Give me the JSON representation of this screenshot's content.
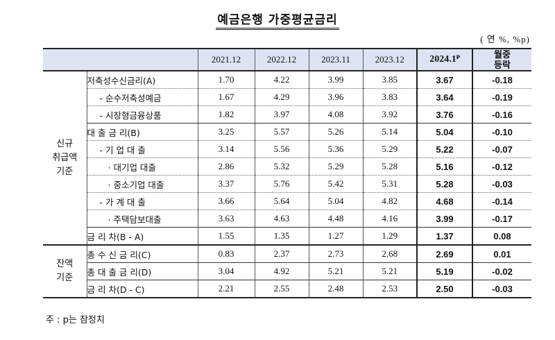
{
  "title": "예금은행 가중평균금리",
  "unit": "( 연 %, %p)",
  "header": {
    "periods": [
      "2021.12",
      "2022.12",
      "2023.11",
      "2023.12",
      "2024.1ᴾ"
    ],
    "mom_line1": "월중",
    "mom_line2": "등락"
  },
  "groups": {
    "new": [
      "신규",
      "취급액",
      "기준"
    ],
    "balance": [
      "잔액",
      "기준"
    ]
  },
  "rows": [
    {
      "label": "저축성수신금리(A)",
      "values": [
        "1.70",
        "4.22",
        "3.99",
        "3.85",
        "3.67"
      ],
      "mom": "-0.18"
    },
    {
      "label": "- 순수저축성예금",
      "values": [
        "1.67",
        "4.29",
        "3.96",
        "3.83",
        "3.64"
      ],
      "mom": "-0.19"
    },
    {
      "label": "- 시장형금융상품",
      "values": [
        "1.82",
        "3.97",
        "4.08",
        "3.92",
        "3.76"
      ],
      "mom": "-0.16"
    },
    {
      "label": "대 출 금 리(B)",
      "values": [
        "3.25",
        "5.57",
        "5.26",
        "5.14",
        "5.04"
      ],
      "mom": "-0.10"
    },
    {
      "label": "- 기 업 대 출",
      "values": [
        "3.14",
        "5.56",
        "5.36",
        "5.29",
        "5.22"
      ],
      "mom": "-0.07"
    },
    {
      "label": "· 대기업 대출",
      "values": [
        "2.86",
        "5.32",
        "5.29",
        "5.28",
        "5.16"
      ],
      "mom": "-0.12"
    },
    {
      "label": "· 중소기업 대출",
      "values": [
        "3.37",
        "5.76",
        "5.42",
        "5.31",
        "5.28"
      ],
      "mom": "-0.03"
    },
    {
      "label": "- 가 계 대 출",
      "values": [
        "3.66",
        "5.64",
        "5.04",
        "4.82",
        "4.68"
      ],
      "mom": "-0.14"
    },
    {
      "label": "· 주택담보대출",
      "values": [
        "3.63",
        "4.63",
        "4.48",
        "4.16",
        "3.99"
      ],
      "mom": "-0.17"
    },
    {
      "label": "금 리 차(B - A)",
      "values": [
        "1.55",
        "1.35",
        "1.27",
        "1.29",
        "1.37"
      ],
      "mom": "0.08"
    },
    {
      "label": "총 수 신 금 리(C)",
      "values": [
        "0.83",
        "2.37",
        "2.73",
        "2.68",
        "2.69"
      ],
      "mom": "0.01"
    },
    {
      "label": "총 대 출 금 리(D)",
      "values": [
        "3.04",
        "4.92",
        "5.21",
        "5.21",
        "5.19"
      ],
      "mom": "-0.02"
    },
    {
      "label": "금 리 차(D - C)",
      "values": [
        "2.21",
        "2.55",
        "2.48",
        "2.53",
        "2.50"
      ],
      "mom": "-0.03"
    }
  ],
  "note": "주 : p는 잠정치"
}
